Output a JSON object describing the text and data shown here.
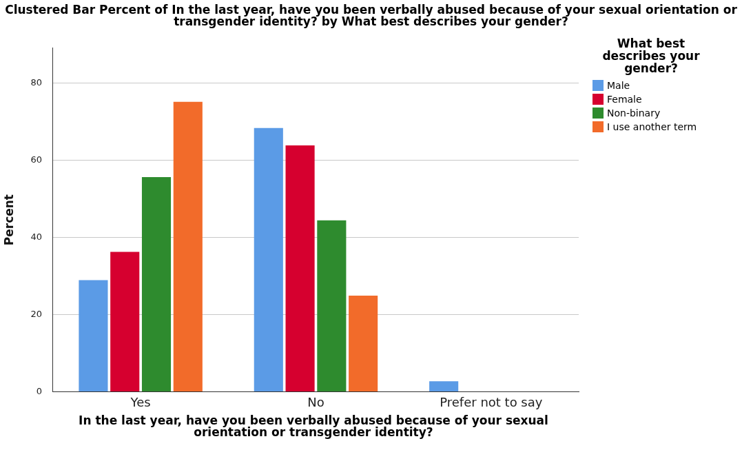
{
  "chart_data": {
    "type": "bar",
    "title": "Clustered Bar Percent of In the last year, have you been verbally abused because of your sexual orientation or transgender identity? by What best describes your gender?",
    "xlabel": "In the last year, have you been verbally abused because of your sexual orientation or transgender identity?",
    "ylabel": "Percent",
    "legend_title": "What best describes your gender?",
    "categories": [
      "Yes",
      "No",
      "Prefer not to say"
    ],
    "series": [
      {
        "name": "Male",
        "color": "#5b9be6",
        "values": [
          28.9,
          68.3,
          2.7
        ]
      },
      {
        "name": "Female",
        "color": "#d6002f",
        "values": [
          36.2,
          63.8,
          null
        ]
      },
      {
        "name": "Non-binary",
        "color": "#2e8b2e",
        "values": [
          55.6,
          44.4,
          null
        ]
      },
      {
        "name": "I use another term",
        "color": "#f26b2a",
        "values": [
          75.1,
          24.9,
          null
        ]
      }
    ],
    "ylim": [
      0,
      89
    ],
    "yticks": [
      0,
      20,
      40,
      60,
      80
    ],
    "grid": "y",
    "legend": "top right"
  }
}
